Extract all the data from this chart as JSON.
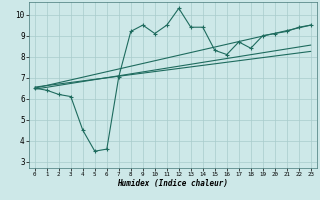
{
  "xlabel": "Humidex (Indice chaleur)",
  "bg_color": "#cde8e8",
  "grid_color": "#a8cccc",
  "line_color": "#1e6b5e",
  "xlim": [
    -0.5,
    23.5
  ],
  "ylim": [
    2.7,
    10.6
  ],
  "xticks": [
    0,
    1,
    2,
    3,
    4,
    5,
    6,
    7,
    8,
    9,
    10,
    11,
    12,
    13,
    14,
    15,
    16,
    17,
    18,
    19,
    20,
    21,
    22,
    23
  ],
  "yticks": [
    3,
    4,
    5,
    6,
    7,
    8,
    9,
    10
  ],
  "series1_x": [
    0,
    1,
    2,
    3,
    4,
    5,
    6,
    7,
    8,
    9,
    10,
    11,
    12,
    13,
    14,
    15,
    16,
    17,
    18,
    19,
    20,
    21,
    22,
    23
  ],
  "series1_y": [
    6.5,
    6.4,
    6.2,
    6.1,
    4.5,
    3.5,
    3.6,
    7.05,
    9.2,
    9.5,
    9.1,
    9.5,
    10.3,
    9.4,
    9.4,
    8.3,
    8.1,
    8.7,
    8.4,
    9.0,
    9.1,
    9.2,
    9.4,
    9.5
  ],
  "trend_lines": [
    {
      "x": [
        0,
        23
      ],
      "y": [
        6.5,
        9.5
      ]
    },
    {
      "x": [
        0,
        23
      ],
      "y": [
        6.55,
        8.25
      ]
    },
    {
      "x": [
        0,
        23
      ],
      "y": [
        6.45,
        8.55
      ]
    }
  ]
}
